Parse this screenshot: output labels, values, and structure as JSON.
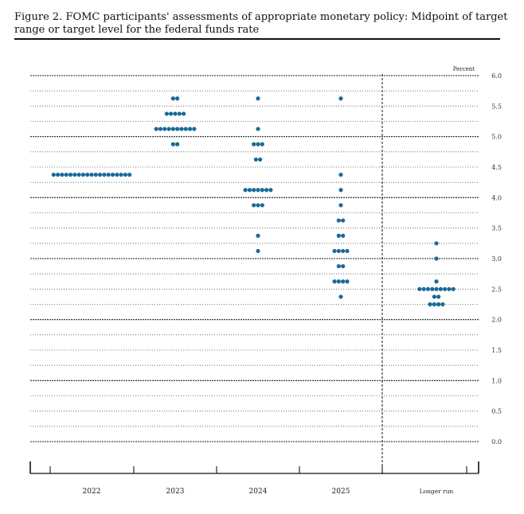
{
  "title": "Figure 2.  FOMC participants' assessments of appropriate monetary policy: Midpoint of target range or target level for the federal funds rate",
  "chart_data": {
    "type": "scatter",
    "title": "FOMC participants' assessments of appropriate monetary policy: Midpoint of target range or target level for the federal funds rate",
    "ylabel": "Percent",
    "ylim": [
      0,
      6.0
    ],
    "yticks": [
      "0.0",
      "0.5",
      "1.0",
      "1.5",
      "2.0",
      "2.5",
      "3.0",
      "3.5",
      "4.0",
      "4.5",
      "5.0",
      "5.5",
      "6.0"
    ],
    "categories": [
      "2022",
      "2023",
      "2024",
      "2025",
      "Longer run"
    ],
    "dot_color": "#1a6a96",
    "series": [
      {
        "name": "2022",
        "dots": [
          {
            "rate": 4.375,
            "count": 19
          }
        ]
      },
      {
        "name": "2023",
        "dots": [
          {
            "rate": 5.625,
            "count": 2
          },
          {
            "rate": 5.375,
            "count": 5
          },
          {
            "rate": 5.125,
            "count": 10
          },
          {
            "rate": 4.875,
            "count": 2
          }
        ]
      },
      {
        "name": "2024",
        "dots": [
          {
            "rate": 5.625,
            "count": 1
          },
          {
            "rate": 5.125,
            "count": 1
          },
          {
            "rate": 4.875,
            "count": 3
          },
          {
            "rate": 4.625,
            "count": 2
          },
          {
            "rate": 4.125,
            "count": 7
          },
          {
            "rate": 3.875,
            "count": 3
          },
          {
            "rate": 3.375,
            "count": 1
          },
          {
            "rate": 3.125,
            "count": 1
          }
        ]
      },
      {
        "name": "2025",
        "dots": [
          {
            "rate": 5.625,
            "count": 1
          },
          {
            "rate": 4.375,
            "count": 1
          },
          {
            "rate": 4.125,
            "count": 1
          },
          {
            "rate": 3.875,
            "count": 1
          },
          {
            "rate": 3.625,
            "count": 2
          },
          {
            "rate": 3.375,
            "count": 2
          },
          {
            "rate": 3.125,
            "count": 4
          },
          {
            "rate": 2.875,
            "count": 2
          },
          {
            "rate": 2.625,
            "count": 4
          },
          {
            "rate": 2.375,
            "count": 1
          }
        ]
      },
      {
        "name": "Longer run",
        "dots": [
          {
            "rate": 3.25,
            "count": 1
          },
          {
            "rate": 3.0,
            "count": 1
          },
          {
            "rate": 2.625,
            "count": 1
          },
          {
            "rate": 2.5,
            "count": 9
          },
          {
            "rate": 2.375,
            "count": 2
          },
          {
            "rate": 2.25,
            "count": 4
          }
        ]
      }
    ]
  }
}
